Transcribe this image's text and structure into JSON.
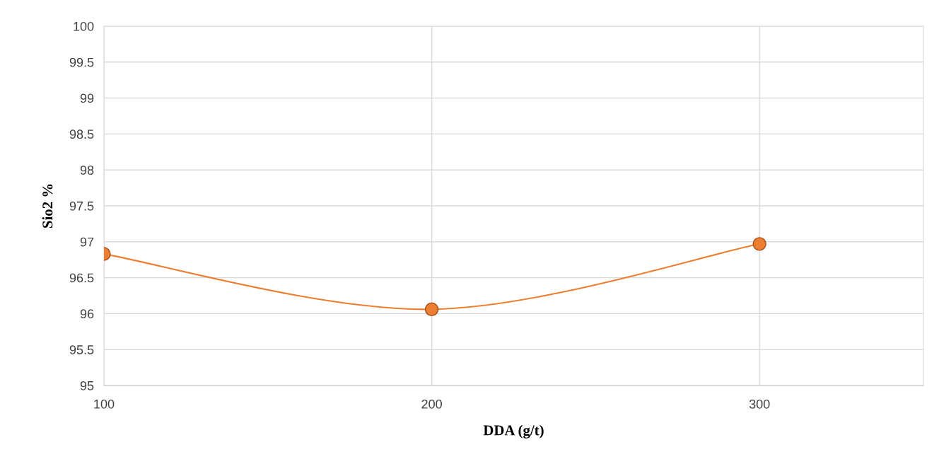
{
  "chart_data": {
    "type": "line",
    "xlabel": "DDA (g/t)",
    "ylabel": "Sio2 %",
    "x": [
      100,
      200,
      300
    ],
    "series": [
      {
        "color": "#ed7d31",
        "values": [
          96.83,
          96.06,
          96.97
        ]
      }
    ],
    "xlim": [
      100,
      350
    ],
    "xticks": [
      100,
      200,
      300
    ],
    "ylim": [
      95,
      100
    ],
    "yticks": [
      95,
      95.5,
      96,
      96.5,
      97,
      97.5,
      98,
      98.5,
      99,
      99.5,
      100
    ],
    "grid": true,
    "marker": "circle",
    "line_style": "solid"
  }
}
